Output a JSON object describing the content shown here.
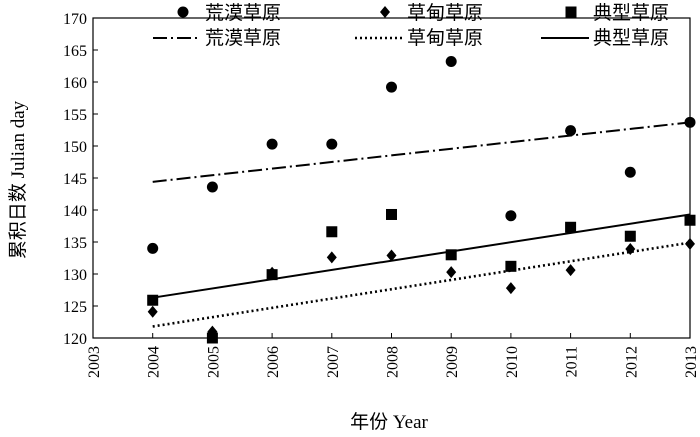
{
  "chart_data": {
    "type": "scatter",
    "xlabel": "年份 Year",
    "ylabel": "累积日数 Julian day",
    "xlim": [
      2003,
      2013
    ],
    "ylim": [
      120,
      170
    ],
    "xticks": [
      2003,
      2004,
      2005,
      2006,
      2007,
      2008,
      2009,
      2010,
      2011,
      2012,
      2013
    ],
    "yticks": [
      120,
      125,
      130,
      135,
      140,
      145,
      150,
      155,
      160,
      165,
      170
    ],
    "grid": false,
    "legend_position": "top",
    "series": [
      {
        "name": "荒漠草原",
        "marker": "circle",
        "color": "#000000",
        "x": [
          2004,
          2005,
          2006,
          2007,
          2008,
          2009,
          2010,
          2011,
          2012,
          2013
        ],
        "y": [
          134,
          143.6,
          150.3,
          150.3,
          159.2,
          163.2,
          139.1,
          152.4,
          145.9,
          153.7
        ]
      },
      {
        "name": "草甸草原",
        "marker": "diamond",
        "color": "#000000",
        "x": [
          2004,
          2005,
          2006,
          2007,
          2008,
          2009,
          2010,
          2011,
          2012,
          2013
        ],
        "y": [
          124.1,
          121,
          130.2,
          132.6,
          132.9,
          130.3,
          127.8,
          130.6,
          133.9,
          134.7
        ]
      },
      {
        "name": "典型草原",
        "marker": "square",
        "color": "#000000",
        "x": [
          2004,
          2005,
          2006,
          2007,
          2008,
          2009,
          2010,
          2011,
          2012,
          2013
        ],
        "y": [
          125.9,
          120,
          129.9,
          136.6,
          139.3,
          133,
          131.2,
          137.3,
          135.9,
          138.4
        ]
      }
    ],
    "trendlines": [
      {
        "name": "荒漠草原",
        "style": "dash-dot",
        "x": [
          2004,
          2013
        ],
        "y": [
          144.4,
          153.7
        ]
      },
      {
        "name": "草甸草原",
        "style": "dotted",
        "x": [
          2004,
          2013
        ],
        "y": [
          121.8,
          134.9
        ]
      },
      {
        "name": "典型草原",
        "style": "solid",
        "x": [
          2004,
          2013
        ],
        "y": [
          126.3,
          139.3
        ]
      }
    ]
  }
}
